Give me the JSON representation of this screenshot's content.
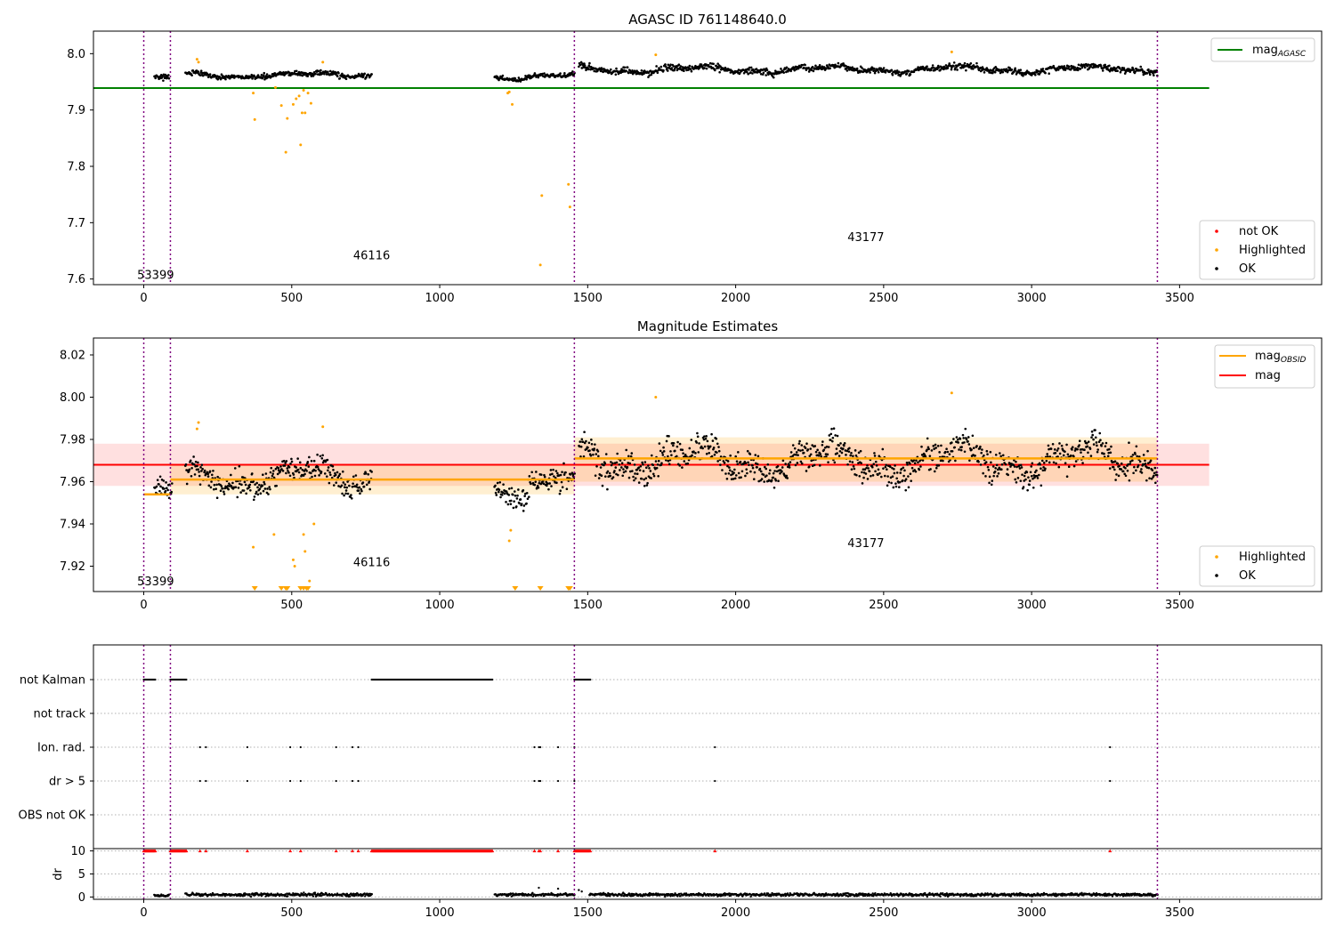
{
  "colors": {
    "ok": "#000000",
    "highlighted": "#ffa500",
    "not_ok": "#ff0000",
    "mag_agasc_line": "#008000",
    "mag_line": "#ff0000",
    "mag_obsid_line": "#ffa500",
    "obsid_boundary": "#800080"
  },
  "chart_data": [
    {
      "type": "scatter",
      "title": "AGASC ID 761148640.0",
      "xlim": [
        -170,
        3980
      ],
      "ylim": [
        7.59,
        8.04
      ],
      "x_ticks": [
        0,
        500,
        1000,
        1500,
        2000,
        2500,
        3000,
        3500
      ],
      "y_ticks": [
        "7.6",
        "7.7",
        "7.8",
        "7.9",
        "8.0"
      ],
      "obsid_boundaries": [
        0,
        90,
        1455,
        3425
      ],
      "obsid_labels": [
        {
          "text": "53399",
          "x": 40,
          "y": 7.6
        },
        {
          "text": "46116",
          "x": 770,
          "y": 7.635
        },
        {
          "text": "43177",
          "x": 2440,
          "y": 7.667
        }
      ],
      "reference_lines": [
        {
          "name": "mag_AGASC",
          "y": 7.939,
          "x_range": [
            -170,
            3600
          ]
        }
      ],
      "legend_upper": {
        "placement": "top-right",
        "entries": [
          {
            "label": "mag",
            "sub": "AGASC"
          }
        ]
      },
      "legend_lower": {
        "placement": "bottom-right",
        "entries": [
          "not OK",
          "Highlighted",
          "OK"
        ]
      },
      "series": [
        {
          "name": "OK",
          "segments": [
            {
              "x": [
                35,
                85
              ],
              "level": 7.955,
              "spread": 0.006
            },
            {
              "x": [
                140,
                770
              ],
              "level": 7.962,
              "spread": 0.006
            },
            {
              "x": [
                1185,
                1455
              ],
              "level": 7.959,
              "spread": 0.006
            },
            {
              "x": [
                1470,
                3425
              ],
              "level": 7.972,
              "spread": 0.008
            }
          ]
        },
        {
          "name": "Highlighted",
          "x": [
            180,
            185,
            370,
            375,
            445,
            465,
            480,
            485,
            505,
            515,
            525,
            530,
            535,
            540,
            545,
            555,
            565,
            605,
            1230,
            1235,
            1245,
            1340,
            1345,
            1435,
            1440,
            1730,
            2730
          ],
          "y": [
            7.99,
            7.985,
            7.93,
            7.883,
            7.94,
            7.908,
            7.825,
            7.885,
            7.91,
            7.92,
            7.925,
            7.838,
            7.895,
            7.935,
            7.895,
            7.93,
            7.912,
            7.985,
            7.93,
            7.932,
            7.91,
            7.625,
            7.748,
            7.768,
            7.728,
            7.998,
            8.003
          ]
        }
      ]
    },
    {
      "type": "scatter",
      "title": "Magnitude Estimates",
      "xlim": [
        -170,
        3980
      ],
      "ylim": [
        7.908,
        8.028
      ],
      "x_ticks": [
        0,
        500,
        1000,
        1500,
        2000,
        2500,
        3000,
        3500
      ],
      "y_ticks": [
        "7.92",
        "7.94",
        "7.96",
        "7.98",
        "8.00",
        "8.02"
      ],
      "obsid_boundaries": [
        0,
        90,
        1455,
        3425
      ],
      "obsid_labels": [
        {
          "text": "53399",
          "x": 40,
          "y": 7.911
        },
        {
          "text": "46116",
          "x": 770,
          "y": 7.92
        },
        {
          "text": "43177",
          "x": 2440,
          "y": 7.929
        }
      ],
      "mag": {
        "value": 7.968,
        "band": [
          7.958,
          7.978
        ],
        "x_range": [
          -170,
          3600
        ]
      },
      "mag_obsid": [
        {
          "x": [
            0,
            90
          ],
          "value": 7.954
        },
        {
          "x": [
            90,
            1455
          ],
          "value": 7.961,
          "band": [
            7.954,
            7.968
          ]
        },
        {
          "x": [
            1455,
            3425
          ],
          "value": 7.971,
          "band": [
            7.96,
            7.981
          ]
        }
      ],
      "legend_upper": {
        "placement": "top-right",
        "entries": [
          {
            "label": "mag",
            "sub": "OBSID"
          },
          {
            "label": "mag"
          }
        ]
      },
      "legend_lower": {
        "placement": "bottom-right",
        "entries": [
          "Highlighted",
          "OK"
        ]
      },
      "series": [
        {
          "name": "OK",
          "segments": [
            {
              "x": [
                35,
                95
              ],
              "level": 7.954,
              "spread": 0.006
            },
            {
              "x": [
                140,
                770
              ],
              "level": 7.962,
              "spread": 0.008
            },
            {
              "x": [
                1185,
                1455
              ],
              "level": 7.958,
              "spread": 0.008
            },
            {
              "x": [
                1470,
                3425
              ],
              "level": 7.97,
              "spread": 0.01
            }
          ]
        },
        {
          "name": "Highlighted",
          "x": [
            180,
            185,
            370,
            440,
            505,
            510,
            540,
            545,
            560,
            575,
            605,
            1235,
            1240,
            1730,
            2730
          ],
          "y": [
            7.985,
            7.988,
            7.929,
            7.935,
            7.923,
            7.92,
            7.935,
            7.927,
            7.913,
            7.94,
            7.986,
            7.932,
            7.937,
            8.0,
            8.002
          ]
        },
        {
          "name": "Highlighted (off-scale)",
          "marker": "triangle-down",
          "x": [
            375,
            465,
            480,
            485,
            530,
            540,
            550,
            555,
            1255,
            1340,
            1435,
            1440
          ],
          "y": [
            7.908,
            7.908,
            7.908,
            7.908,
            7.908,
            7.908,
            7.908,
            7.908,
            7.908,
            7.908,
            7.908,
            7.908
          ]
        }
      ]
    },
    {
      "type": "scatter",
      "title": "",
      "xlim": [
        -170,
        3980
      ],
      "x_ticks": [
        0,
        500,
        1000,
        1500,
        2000,
        2500,
        3000,
        3500
      ],
      "obsid_boundaries": [
        0,
        90,
        1455,
        3425
      ],
      "flag_rows": [
        "not Kalman",
        "not track",
        "Ion. rad.",
        "dr > 5",
        "OBS not OK"
      ],
      "flags": {
        "not Kalman": {
          "ranges": [
            [
              0,
              40
            ],
            [
              90,
              145
            ],
            [
              770,
              1180
            ],
            [
              1455,
              1510
            ]
          ]
        },
        "not track": {
          "x": []
        },
        "Ion. rad.": {
          "x": [
            190,
            210,
            350,
            495,
            530,
            650,
            705,
            725,
            1320,
            1335,
            1340,
            1400,
            1455,
            1930,
            3265
          ]
        },
        "dr > 5": {
          "x": [
            190,
            210,
            350,
            495,
            530,
            650,
            705,
            725,
            1320,
            1335,
            1340,
            1400,
            1455,
            1930,
            3265
          ]
        },
        "OBS not OK": {
          "x": []
        }
      }
    },
    {
      "type": "scatter",
      "title": "",
      "ylabel": "dr",
      "xlim": [
        -170,
        3980
      ],
      "ylim": [
        -0.5,
        10.5
      ],
      "x_ticks": [
        0,
        500,
        1000,
        1500,
        2000,
        2500,
        3000,
        3500
      ],
      "y_ticks": [
        "0",
        "5",
        "10"
      ],
      "obsid_boundaries": [
        0,
        90,
        1455,
        3425
      ],
      "capped_dr": {
        "value": 10,
        "ranges": [
          [
            0,
            40
          ],
          [
            90,
            145
          ],
          [
            770,
            1180
          ],
          [
            1455,
            1510
          ]
        ],
        "x": [
          190,
          210,
          350,
          495,
          530,
          650,
          705,
          725,
          1320,
          1335,
          1340,
          1400,
          1930,
          3265
        ]
      },
      "dr_segments": [
        {
          "x": [
            35,
            85
          ],
          "level": 0.3
        },
        {
          "x": [
            140,
            770
          ],
          "level": 0.5
        },
        {
          "x": [
            1185,
            1455
          ],
          "level": 0.5
        },
        {
          "x": [
            1505,
            3425
          ],
          "level": 0.5
        }
      ],
      "dr_outliers": {
        "x": [
          1335,
          1400,
          1470,
          1480
        ],
        "y": [
          2.0,
          1.8,
          1.5,
          1.2
        ]
      }
    }
  ]
}
